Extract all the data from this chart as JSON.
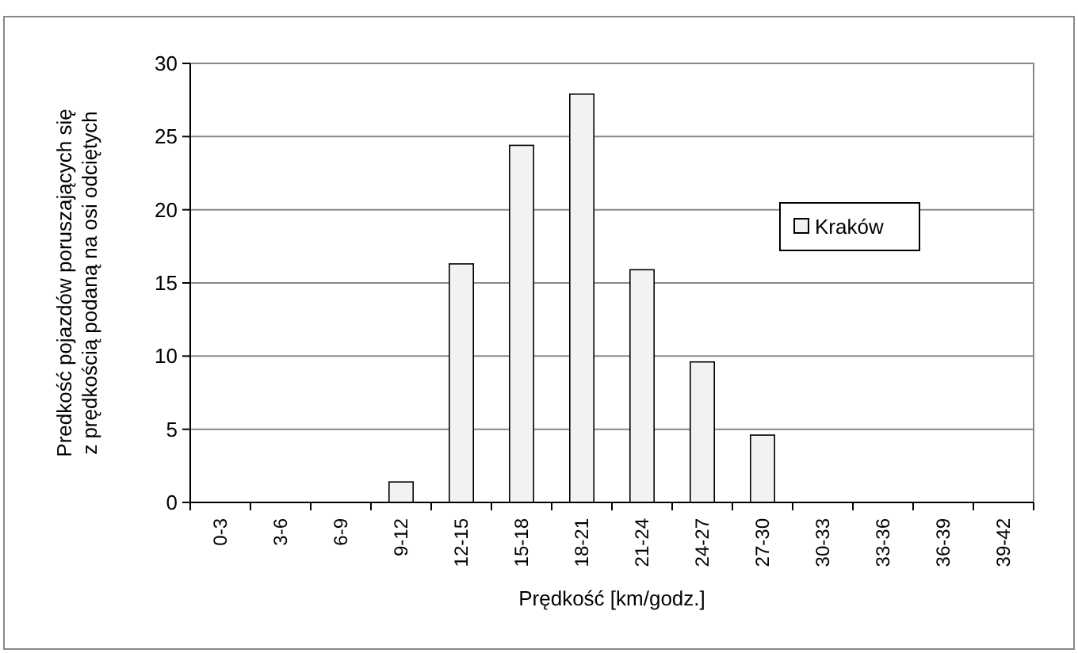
{
  "chart_data": {
    "type": "bar",
    "xlabel": "Prędkość [km/godz.]",
    "ylabel": "Predkość pojazdów poruszających się\nz prędkością podaną na osi odciętych",
    "categories": [
      "0-3",
      "3-6",
      "6-9",
      "9-12",
      "12-15",
      "15-18",
      "18-21",
      "21-24",
      "24-27",
      "27-30",
      "30-33",
      "33-36",
      "36-39",
      "39-42"
    ],
    "series": [
      {
        "name": "Kraków",
        "color": "#f2f2f2",
        "values": [
          0,
          0,
          0,
          1.4,
          16.3,
          24.4,
          27.9,
          15.9,
          9.6,
          4.6,
          0,
          0,
          0,
          0
        ]
      }
    ],
    "ylim": [
      0,
      30
    ],
    "yticks": [
      0,
      5,
      10,
      15,
      20,
      25,
      30
    ],
    "grid": "y",
    "legend": "right"
  }
}
